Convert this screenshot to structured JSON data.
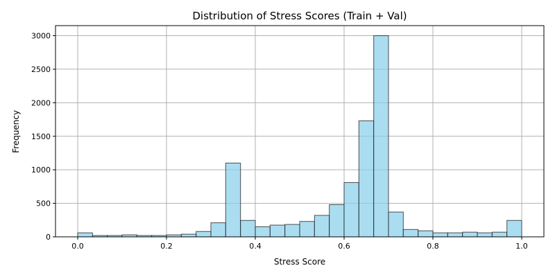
{
  "chart_data": {
    "type": "bar",
    "subtype": "histogram",
    "title": "Distribution of Stress Scores (Train + Val)",
    "xlabel": "Stress Score",
    "ylabel": "Frequency",
    "xlim": [
      -0.05,
      1.05
    ],
    "ylim": [
      0,
      3150
    ],
    "xticks": [
      "0.0",
      "0.2",
      "0.4",
      "0.6",
      "0.8",
      "1.0"
    ],
    "yticks": [
      "0",
      "500",
      "1000",
      "1500",
      "2000",
      "2500",
      "3000"
    ],
    "grid": true,
    "bin_edges": [
      0.0,
      0.0333,
      0.0667,
      0.1,
      0.1333,
      0.1667,
      0.2,
      0.2333,
      0.2667,
      0.3,
      0.3333,
      0.3667,
      0.4,
      0.4333,
      0.4667,
      0.5,
      0.5333,
      0.5667,
      0.6,
      0.6333,
      0.6667,
      0.7,
      0.7333,
      0.7667,
      0.8,
      0.8333,
      0.8667,
      0.9,
      0.9333,
      0.9667,
      1.0
    ],
    "values": [
      60,
      20,
      20,
      30,
      20,
      20,
      30,
      40,
      80,
      210,
      1100,
      245,
      150,
      175,
      185,
      230,
      320,
      480,
      810,
      1730,
      3000,
      370,
      110,
      90,
      60,
      60,
      70,
      60,
      70,
      245
    ],
    "bar_color": "#87ceeb",
    "edge_color": "#1a1a1a"
  }
}
